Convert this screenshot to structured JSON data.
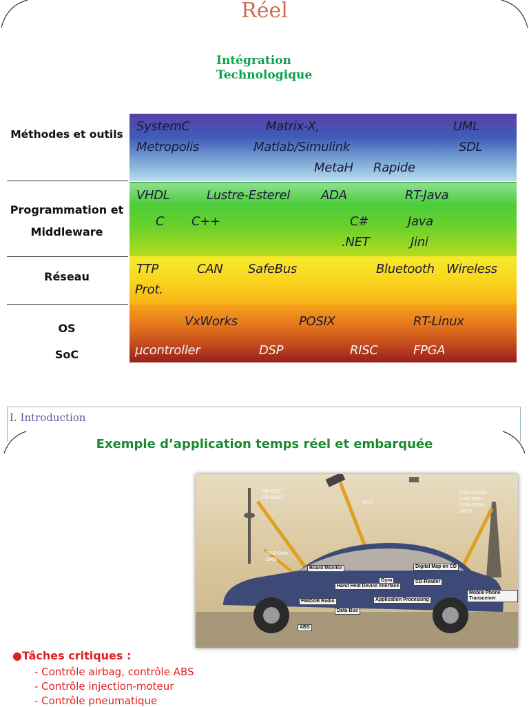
{
  "slide1": {
    "title_line": "Réel",
    "integration": [
      "Intégration",
      "Technologique"
    ],
    "rows": [
      {
        "label": [
          "Méthodes et outils"
        ],
        "keywords": [
          "SystemC",
          "Matrix-X,",
          "UML",
          "Metropolis",
          "Matlab/Simulink",
          "SDL",
          "MetaH",
          "Rapide"
        ]
      },
      {
        "label": [
          "Programmation et",
          "Middleware"
        ],
        "keywords": [
          "VHDL",
          "Lustre-Esterel",
          "ADA",
          "RT-Java",
          "C",
          "C++",
          "C#",
          "Java",
          ".NET",
          "Jini"
        ]
      },
      {
        "label": [
          "Réseau"
        ],
        "keywords": [
          "TTP",
          "CAN",
          "SafeBus",
          "Bluetooth",
          "Wireless",
          "Prot."
        ]
      },
      {
        "label": [
          "OS",
          "SoC"
        ],
        "keywords": [
          "VxWorks",
          "POSIX",
          "RT-Linux",
          "µcontroller",
          "DSP",
          "RISC",
          "FPGA"
        ]
      }
    ]
  },
  "slide2": {
    "section": "I. Introduction",
    "title": "Exemple d’application temps réel et embarquée",
    "image_labels": [
      "FM-RDS",
      "FM-SWIFT",
      "GPS",
      "GSM-Bearer",
      "GSM-SMS",
      "GSM-GPRS",
      "UMTS",
      "DAB-Data",
      "DMB",
      "Board Monitor",
      "Digital Map on CD",
      "Gyro",
      "CD-Reader",
      "Hand Held Device Interface",
      "FM/DAB Radio",
      "Application Processing",
      "Mobile Phone Transceiver",
      "Data-Bus",
      "ABS"
    ],
    "tasks_heading": "●Tâches critiques :",
    "tasks": [
      "- Contrôle airbag, contrôle ABS",
      "- Contrôle injection-moteur",
      "- Contrôle pneumatique"
    ]
  },
  "colors": {
    "title": "#cf6a52",
    "integration": "#0aa24a",
    "section": "#6b4fa0",
    "title2": "#1a8a2e",
    "tasks": "#e31e1e"
  }
}
